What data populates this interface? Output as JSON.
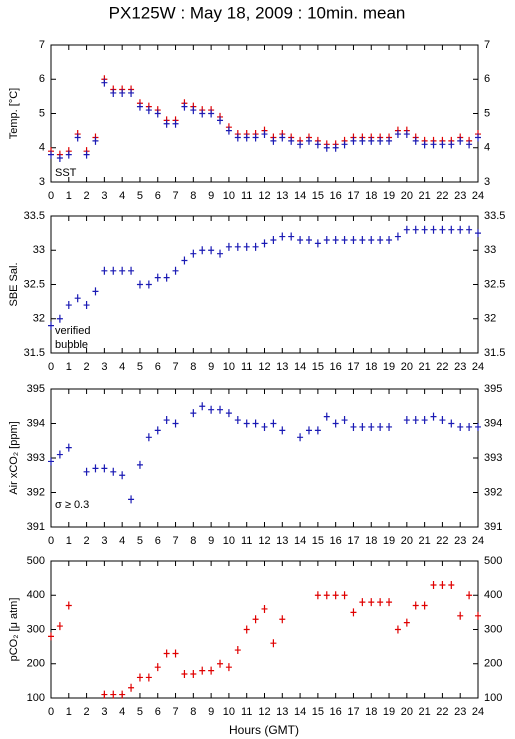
{
  "title": "PX125W : May 18, 2009 : 10min. mean",
  "xlabel": "Hours (GMT)",
  "chart_data": [
    {
      "type": "scatter",
      "ylabel": "Temp. [°C]",
      "xlim": [
        0,
        24
      ],
      "xticks": [
        0,
        1,
        2,
        3,
        4,
        5,
        6,
        7,
        8,
        9,
        10,
        11,
        12,
        13,
        14,
        15,
        16,
        17,
        18,
        19,
        20,
        21,
        22,
        23,
        24
      ],
      "ylim": [
        3,
        7
      ],
      "yticks": [
        3,
        4,
        5,
        6,
        7
      ],
      "x": [
        0,
        0.5,
        1,
        1.5,
        2,
        2.5,
        3,
        3.5,
        4,
        4.5,
        5,
        5.5,
        6,
        6.5,
        7,
        7.5,
        8,
        8.5,
        9,
        9.5,
        10,
        10.5,
        11,
        11.5,
        12,
        12.5,
        13,
        13.5,
        14,
        14.5,
        15,
        15.5,
        16,
        16.5,
        17,
        17.5,
        18,
        18.5,
        19,
        19.5,
        20,
        20.5,
        21,
        21.5,
        22,
        22.5,
        23,
        23.5,
        24
      ],
      "series": [
        {
          "color": "#e00000",
          "values": [
            3.9,
            3.8,
            3.9,
            4.4,
            3.9,
            4.3,
            6.0,
            5.7,
            5.7,
            5.7,
            5.3,
            5.2,
            5.1,
            4.8,
            4.8,
            5.3,
            5.2,
            5.1,
            5.1,
            4.9,
            4.6,
            4.4,
            4.4,
            4.4,
            4.5,
            4.3,
            4.4,
            4.3,
            4.2,
            4.3,
            4.2,
            4.1,
            4.1,
            4.2,
            4.3,
            4.3,
            4.3,
            4.3,
            4.3,
            4.5,
            4.5,
            4.3,
            4.2,
            4.2,
            4.2,
            4.2,
            4.3,
            4.2,
            4.4
          ]
        },
        {
          "name": "SST",
          "color": "#1a1ab4",
          "values": [
            3.8,
            3.7,
            3.8,
            4.3,
            3.8,
            4.2,
            5.9,
            5.6,
            5.6,
            5.6,
            5.2,
            5.1,
            5.0,
            4.7,
            4.7,
            5.2,
            5.1,
            5.0,
            5.0,
            4.8,
            4.5,
            4.3,
            4.3,
            4.3,
            4.4,
            4.2,
            4.3,
            4.2,
            4.1,
            4.2,
            4.1,
            4.0,
            4.0,
            4.1,
            4.2,
            4.2,
            4.2,
            4.2,
            4.2,
            4.4,
            4.4,
            4.2,
            4.1,
            4.1,
            4.1,
            4.1,
            4.2,
            4.1,
            4.3
          ]
        }
      ],
      "annotations": [
        {
          "text": "SST",
          "color": "#1a1ab4"
        }
      ]
    },
    {
      "type": "scatter",
      "ylabel": "SBE Sal.",
      "xlim": [
        0,
        24
      ],
      "xticks": [
        0,
        1,
        2,
        3,
        4,
        5,
        6,
        7,
        8,
        9,
        10,
        11,
        12,
        13,
        14,
        15,
        16,
        17,
        18,
        19,
        20,
        21,
        22,
        23,
        24
      ],
      "ylim": [
        31.5,
        33.5
      ],
      "yticks": [
        31.5,
        32,
        32.5,
        33,
        33.5
      ],
      "x": [
        0,
        0.5,
        1,
        1.5,
        2,
        2.5,
        3,
        3.5,
        4,
        4.5,
        5,
        5.5,
        6,
        6.5,
        7,
        7.5,
        8,
        8.5,
        9,
        9.5,
        10,
        10.5,
        11,
        11.5,
        12,
        12.5,
        13,
        13.5,
        14,
        14.5,
        15,
        15.5,
        16,
        16.5,
        17,
        17.5,
        18,
        18.5,
        19,
        19.5,
        20,
        20.5,
        21,
        21.5,
        22,
        22.5,
        23,
        23.5,
        24
      ],
      "series": [
        {
          "color": "#1a1ab4",
          "values": [
            31.9,
            32.0,
            32.2,
            32.3,
            32.2,
            32.4,
            32.7,
            32.7,
            32.7,
            32.7,
            32.5,
            32.5,
            32.6,
            32.6,
            32.7,
            32.85,
            32.95,
            33.0,
            33.0,
            32.95,
            33.05,
            33.05,
            33.05,
            33.05,
            33.1,
            33.15,
            33.2,
            33.2,
            33.15,
            33.15,
            33.1,
            33.15,
            33.15,
            33.15,
            33.15,
            33.15,
            33.15,
            33.15,
            33.15,
            33.2,
            33.3,
            33.3,
            33.3,
            33.3,
            33.3,
            33.3,
            33.3,
            33.3,
            33.25
          ]
        }
      ],
      "annotations": [
        {
          "text": "verified",
          "color": "#1a1ab4"
        },
        {
          "text": "bubble",
          "color": "#cc00cc"
        }
      ]
    },
    {
      "type": "scatter",
      "ylabel": "Air xCO₂ [ppm]",
      "xlim": [
        0,
        24
      ],
      "xticks": [
        0,
        1,
        2,
        3,
        4,
        5,
        6,
        7,
        8,
        9,
        10,
        11,
        12,
        13,
        14,
        15,
        16,
        17,
        18,
        19,
        20,
        21,
        22,
        23,
        24
      ],
      "ylim": [
        391,
        395
      ],
      "yticks": [
        391,
        392,
        393,
        394,
        395
      ],
      "x": [
        0,
        0.5,
        1,
        1.5,
        2,
        2.5,
        3,
        3.5,
        4,
        4.5,
        5,
        5.5,
        6,
        6.5,
        7,
        7.5,
        8,
        8.5,
        9,
        9.5,
        10,
        10.5,
        11,
        11.5,
        12,
        12.5,
        13,
        13.5,
        14,
        14.5,
        15,
        15.5,
        16,
        16.5,
        17,
        17.5,
        18,
        18.5,
        19,
        19.5,
        20,
        20.5,
        21,
        21.5,
        22,
        22.5,
        23,
        23.5,
        24
      ],
      "series": [
        {
          "color": "#1a1ab4",
          "values": [
            392.9,
            393.1,
            393.3,
            null,
            392.6,
            392.7,
            392.7,
            392.6,
            392.5,
            391.8,
            392.8,
            393.6,
            393.8,
            394.1,
            394.0,
            null,
            394.3,
            394.5,
            394.4,
            394.4,
            394.3,
            394.1,
            394.0,
            394.0,
            393.9,
            394.0,
            393.8,
            null,
            393.6,
            393.8,
            393.8,
            394.2,
            394.0,
            394.1,
            393.9,
            393.9,
            393.9,
            393.9,
            393.9,
            null,
            394.1,
            394.1,
            394.1,
            394.2,
            394.1,
            394.0,
            393.9,
            393.9,
            393.9
          ]
        }
      ],
      "annotations": [
        {
          "text": "σ ≥ 0.3",
          "color": "#cc00cc"
        }
      ]
    },
    {
      "type": "scatter",
      "ylabel": "pCO₂ [μ atm]",
      "xlim": [
        0,
        24
      ],
      "xticks": [
        0,
        1,
        2,
        3,
        4,
        5,
        6,
        7,
        8,
        9,
        10,
        11,
        12,
        13,
        14,
        15,
        16,
        17,
        18,
        19,
        20,
        21,
        22,
        23,
        24
      ],
      "ylim": [
        100,
        500
      ],
      "yticks": [
        100,
        200,
        300,
        400,
        500
      ],
      "x": [
        0,
        0.5,
        1,
        1.5,
        2,
        2.5,
        3,
        3.5,
        4,
        4.5,
        5,
        5.5,
        6,
        6.5,
        7,
        7.5,
        8,
        8.5,
        9,
        9.5,
        10,
        10.5,
        11,
        11.5,
        12,
        12.5,
        13,
        13.5,
        14,
        14.5,
        15,
        15.5,
        16,
        16.5,
        17,
        17.5,
        18,
        18.5,
        19,
        19.5,
        20,
        20.5,
        21,
        21.5,
        22,
        22.5,
        23,
        23.5,
        24
      ],
      "series": [
        {
          "color": "#e00000",
          "values": [
            280,
            310,
            370,
            null,
            null,
            null,
            110,
            110,
            110,
            130,
            160,
            160,
            190,
            230,
            230,
            170,
            170,
            180,
            180,
            200,
            190,
            240,
            300,
            330,
            360,
            260,
            330,
            null,
            null,
            null,
            400,
            400,
            400,
            400,
            350,
            380,
            380,
            380,
            380,
            300,
            320,
            370,
            370,
            430,
            430,
            430,
            340,
            400,
            340
          ]
        }
      ],
      "annotations": []
    }
  ]
}
